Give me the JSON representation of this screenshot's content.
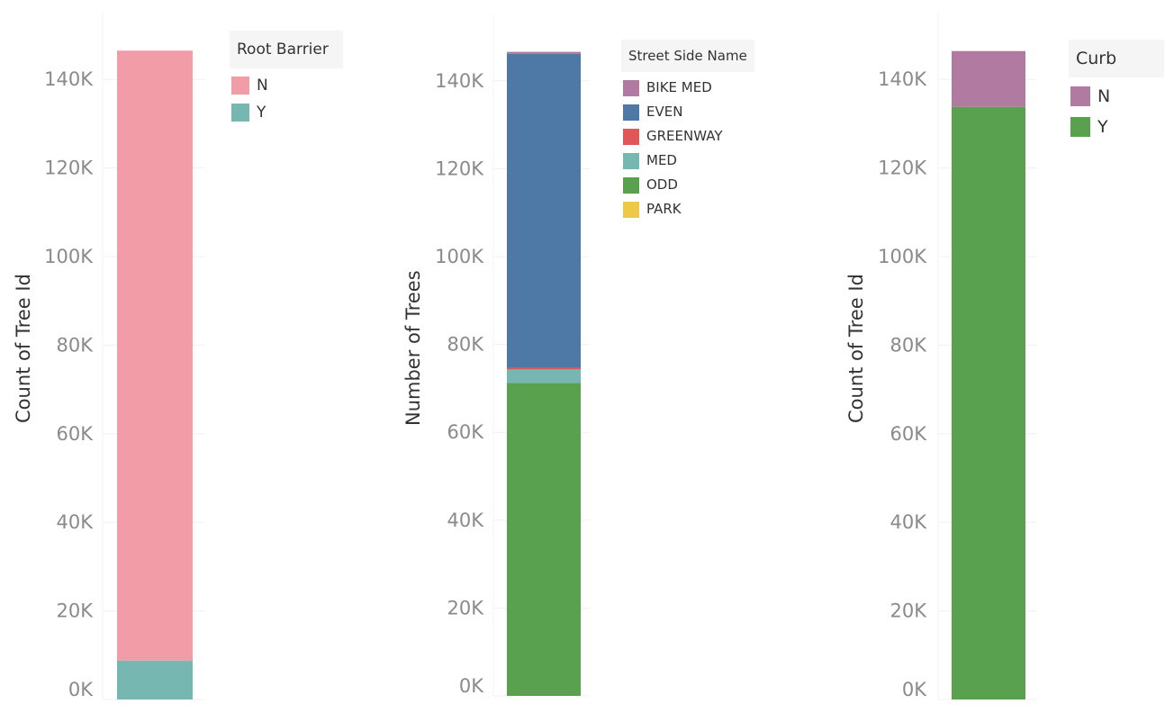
{
  "chart_data": [
    {
      "type": "bar",
      "stacked": true,
      "ylabel": "Count of Tree Id",
      "yticks": [
        "0K",
        "20K",
        "40K",
        "60K",
        "80K",
        "100K",
        "120K",
        "140K"
      ],
      "ylim": [
        0,
        150000
      ],
      "legend": {
        "title": "Root Barrier",
        "placement": "top-right"
      },
      "series": [
        {
          "name": "Y",
          "color": "#76b7b2",
          "values": [
            8800
          ]
        },
        {
          "name": "N",
          "color": "#f19ca7",
          "values": [
            137700
          ]
        }
      ],
      "legend_order": [
        "N",
        "Y"
      ]
    },
    {
      "type": "bar",
      "stacked": true,
      "ylabel": "Number of Trees",
      "yticks": [
        "0K",
        "20K",
        "40K",
        "60K",
        "80K",
        "100K",
        "120K",
        "140K"
      ],
      "ylim": [
        0,
        150000
      ],
      "legend": {
        "title": "Street Side Name",
        "placement": "top-right"
      },
      "series": [
        {
          "name": "ODD",
          "color": "#59a14f",
          "values": [
            71200
          ]
        },
        {
          "name": "MED",
          "color": "#76b7b2",
          "values": [
            3100
          ]
        },
        {
          "name": "GREENWAY",
          "color": "#e15759",
          "values": [
            400
          ]
        },
        {
          "name": "EVEN",
          "color": "#4e79a7",
          "values": [
            71400
          ]
        },
        {
          "name": "BIKE MED",
          "color": "#b07aa1",
          "values": [
            500
          ]
        },
        {
          "name": "PARK",
          "color": "#edc948",
          "values": [
            0
          ]
        }
      ],
      "legend_order": [
        "BIKE MED",
        "EVEN",
        "GREENWAY",
        "MED",
        "ODD",
        "PARK"
      ]
    },
    {
      "type": "bar",
      "stacked": true,
      "ylabel": "Count of Tree Id",
      "yticks": [
        "0K",
        "20K",
        "40K",
        "60K",
        "80K",
        "100K",
        "120K",
        "140K"
      ],
      "ylim": [
        0,
        150000
      ],
      "legend": {
        "title": "Curb",
        "placement": "top-right"
      },
      "series": [
        {
          "name": "Y",
          "color": "#59a14f",
          "values": [
            133800
          ]
        },
        {
          "name": "N",
          "color": "#b07aa1",
          "values": [
            12600
          ]
        }
      ],
      "legend_order": [
        "N",
        "Y"
      ]
    }
  ]
}
